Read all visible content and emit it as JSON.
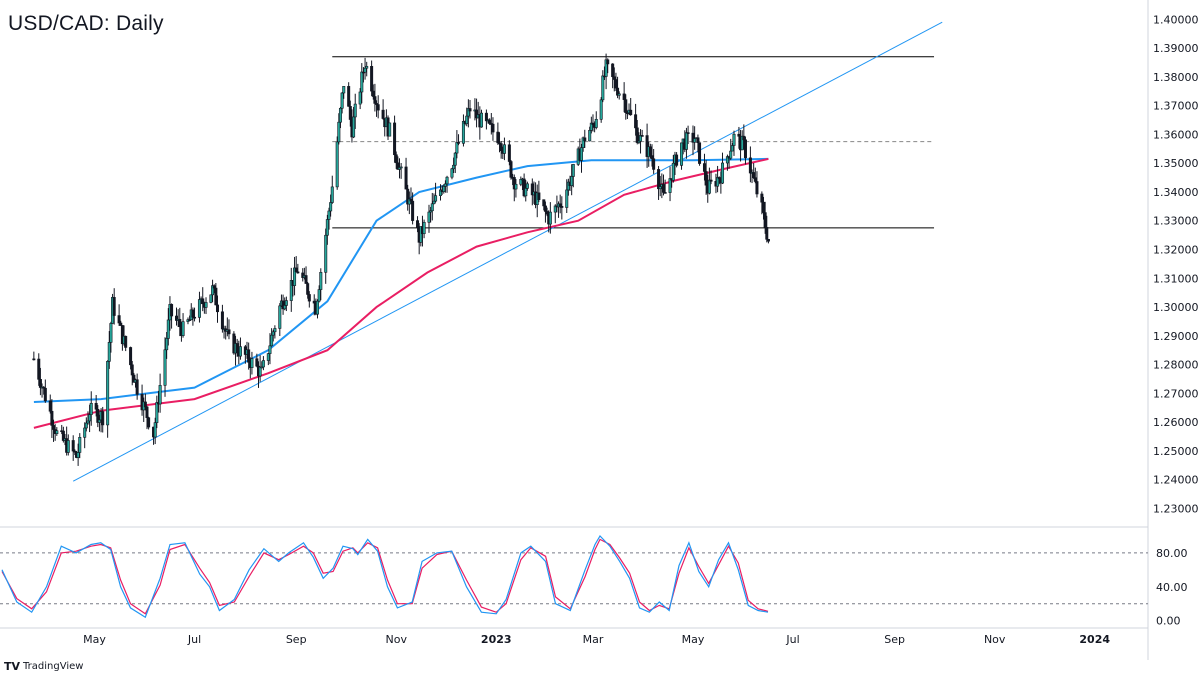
{
  "title": "USD/CAD: Daily",
  "brand": {
    "logo": "TV",
    "name": "TradingView"
  },
  "colors": {
    "bull": "#26a69a",
    "candle_stroke": "#131722",
    "ma_fast": "#2196f3",
    "ma_slow": "#e91e63",
    "trendline": "#2196f3",
    "level": "#000000",
    "stoch_k": "#2196f3",
    "stoch_d": "#e91e63"
  },
  "chart_data": [
    {
      "type": "candlestick",
      "title": "USD/CAD: Daily",
      "y_ticks": [
        "1.40000",
        "1.39000",
        "1.38000",
        "1.37000",
        "1.36000",
        "1.35000",
        "1.34000",
        "1.33000",
        "1.32000",
        "1.31000",
        "1.30000",
        "1.29000",
        "1.28000",
        "1.27000",
        "1.26000",
        "1.25000",
        "1.24000",
        "1.23000"
      ],
      "ylim": [
        1.226,
        1.4015
      ],
      "x_ticks": [
        {
          "label": "May",
          "bold": false
        },
        {
          "label": "Jul",
          "bold": false
        },
        {
          "label": "Sep",
          "bold": false
        },
        {
          "label": "Nov",
          "bold": false
        },
        {
          "label": "2023",
          "bold": true
        },
        {
          "label": "Mar",
          "bold": false
        },
        {
          "label": "May",
          "bold": false
        },
        {
          "label": "Jul",
          "bold": false
        },
        {
          "label": "Sep",
          "bold": false
        },
        {
          "label": "Nov",
          "bold": false
        },
        {
          "label": "2024",
          "bold": true
        }
      ],
      "price_path": [
        [
          "2022-03-25",
          1.282
        ],
        [
          "2022-04-08",
          1.256
        ],
        [
          "2022-04-20",
          1.248
        ],
        [
          "2022-04-28",
          1.264
        ],
        [
          "2022-05-06",
          1.262
        ],
        [
          "2022-05-12",
          1.301
        ],
        [
          "2022-05-20",
          1.286
        ],
        [
          "2022-05-27",
          1.272
        ],
        [
          "2022-06-06",
          1.256
        ],
        [
          "2022-06-16",
          1.298
        ],
        [
          "2022-06-24",
          1.292
        ],
        [
          "2022-07-01",
          1.298
        ],
        [
          "2022-07-12",
          1.306
        ],
        [
          "2022-07-22",
          1.288
        ],
        [
          "2022-08-01",
          1.283
        ],
        [
          "2022-08-11",
          1.277
        ],
        [
          "2022-08-22",
          1.3
        ],
        [
          "2022-09-02",
          1.313
        ],
        [
          "2022-09-13",
          1.3
        ],
        [
          "2022-09-23",
          1.342
        ],
        [
          "2022-09-30",
          1.378
        ],
        [
          "2022-10-05",
          1.362
        ],
        [
          "2022-10-13",
          1.385
        ],
        [
          "2022-10-21",
          1.37
        ],
        [
          "2022-10-28",
          1.361
        ],
        [
          "2022-11-04",
          1.346
        ],
        [
          "2022-11-15",
          1.324
        ],
        [
          "2022-11-25",
          1.337
        ],
        [
          "2022-12-05",
          1.35
        ],
        [
          "2022-12-16",
          1.369
        ],
        [
          "2022-12-22",
          1.365
        ],
        [
          "2023-01-03",
          1.359
        ],
        [
          "2023-01-12",
          1.344
        ],
        [
          "2023-01-25",
          1.338
        ],
        [
          "2023-02-02",
          1.331
        ],
        [
          "2023-02-10",
          1.337
        ],
        [
          "2023-02-17",
          1.347
        ],
        [
          "2023-02-24",
          1.359
        ],
        [
          "2023-03-02",
          1.364
        ],
        [
          "2023-03-09",
          1.383
        ],
        [
          "2023-03-20",
          1.372
        ],
        [
          "2023-03-28",
          1.36
        ],
        [
          "2023-04-06",
          1.352
        ],
        [
          "2023-04-13",
          1.338
        ],
        [
          "2023-04-24",
          1.357
        ],
        [
          "2023-05-02",
          1.359
        ],
        [
          "2023-05-10",
          1.341
        ],
        [
          "2023-05-18",
          1.346
        ],
        [
          "2023-05-26",
          1.359
        ],
        [
          "2023-06-01",
          1.356
        ],
        [
          "2023-06-06",
          1.346
        ],
        [
          "2023-06-12",
          1.334
        ],
        [
          "2023-06-16",
          1.323
        ]
      ],
      "moving_averages": [
        {
          "points": [
            [
              "2022-03-25",
              1.267
            ],
            [
              "2022-05-05",
              1.268
            ],
            [
              "2022-07-01",
              1.272
            ],
            [
              "2022-08-15",
              1.285
            ],
            [
              "2022-09-20",
              1.302
            ],
            [
              "2022-10-20",
              1.33
            ],
            [
              "2022-11-15",
              1.34
            ],
            [
              "2022-12-20",
              1.345
            ],
            [
              "2023-01-20",
              1.349
            ],
            [
              "2023-02-28",
              1.351
            ],
            [
              "2023-04-01",
              1.351
            ],
            [
              "2023-05-01",
              1.351
            ],
            [
              "2023-06-16",
              1.3515
            ]
          ]
        },
        {
          "points": [
            [
              "2022-03-25",
              1.258
            ],
            [
              "2022-05-05",
              1.264
            ],
            [
              "2022-07-01",
              1.268
            ],
            [
              "2022-08-15",
              1.277
            ],
            [
              "2022-09-20",
              1.285
            ],
            [
              "2022-10-20",
              1.3
            ],
            [
              "2022-11-20",
              1.312
            ],
            [
              "2022-12-20",
              1.321
            ],
            [
              "2023-01-20",
              1.326
            ],
            [
              "2023-02-20",
              1.33
            ],
            [
              "2023-03-20",
              1.339
            ],
            [
              "2023-04-20",
              1.344
            ],
            [
              "2023-05-20",
              1.348
            ],
            [
              "2023-06-16",
              1.3515
            ]
          ]
        }
      ],
      "trendline": {
        "from": [
          "2022-04-18",
          1.2395
        ],
        "to": [
          "2023-09-30",
          1.399
        ]
      },
      "levels": [
        {
          "value": 1.387,
          "style": "solid",
          "from": "2022-09-23",
          "to": "2023-09-25"
        },
        {
          "value": 1.3575,
          "style": "dashed",
          "from": "2022-09-23",
          "to": "2023-09-25"
        },
        {
          "value": 1.3275,
          "style": "solid",
          "from": "2022-09-23",
          "to": "2023-09-25"
        }
      ]
    },
    {
      "type": "line",
      "y_ticks": [
        "80.00",
        "40.00",
        "0.00"
      ],
      "ylim": [
        -4,
        100
      ],
      "levels": [
        80,
        20
      ],
      "series_k": [
        [
          0,
          60
        ],
        [
          3,
          22
        ],
        [
          6,
          10
        ],
        [
          9,
          40
        ],
        [
          12,
          88
        ],
        [
          15,
          80
        ],
        [
          18,
          90
        ],
        [
          20,
          92
        ],
        [
          22,
          84
        ],
        [
          24,
          40
        ],
        [
          26,
          15
        ],
        [
          29,
          4
        ],
        [
          32,
          50
        ],
        [
          34,
          90
        ],
        [
          37,
          92
        ],
        [
          40,
          55
        ],
        [
          42,
          40
        ],
        [
          44,
          12
        ],
        [
          47,
          25
        ],
        [
          50,
          60
        ],
        [
          53,
          85
        ],
        [
          56,
          70
        ],
        [
          58,
          80
        ],
        [
          61,
          92
        ],
        [
          63,
          75
        ],
        [
          65,
          50
        ],
        [
          67,
          62
        ],
        [
          69,
          88
        ],
        [
          71,
          85
        ],
        [
          72,
          78
        ],
        [
          74,
          96
        ],
        [
          76,
          82
        ],
        [
          78,
          40
        ],
        [
          80,
          15
        ],
        [
          83,
          22
        ],
        [
          85,
          70
        ],
        [
          88,
          80
        ],
        [
          91,
          82
        ],
        [
          94,
          40
        ],
        [
          97,
          10
        ],
        [
          100,
          8
        ],
        [
          102,
          25
        ],
        [
          105,
          80
        ],
        [
          107,
          88
        ],
        [
          110,
          70
        ],
        [
          112,
          20
        ],
        [
          115,
          12
        ],
        [
          118,
          60
        ],
        [
          120,
          90
        ],
        [
          121,
          100
        ],
        [
          123,
          88
        ],
        [
          125,
          70
        ],
        [
          127,
          50
        ],
        [
          129,
          15
        ],
        [
          131,
          10
        ],
        [
          133,
          22
        ],
        [
          135,
          12
        ],
        [
          137,
          65
        ],
        [
          139,
          92
        ],
        [
          141,
          58
        ],
        [
          143,
          40
        ],
        [
          145,
          72
        ],
        [
          147,
          92
        ],
        [
          149,
          60
        ],
        [
          151,
          18
        ],
        [
          153,
          12
        ],
        [
          155,
          10
        ]
      ],
      "series_d": [
        [
          0,
          58
        ],
        [
          3,
          26
        ],
        [
          6,
          14
        ],
        [
          9,
          34
        ],
        [
          12,
          80
        ],
        [
          15,
          82
        ],
        [
          18,
          88
        ],
        [
          20,
          90
        ],
        [
          22,
          86
        ],
        [
          24,
          48
        ],
        [
          26,
          20
        ],
        [
          29,
          8
        ],
        [
          32,
          42
        ],
        [
          34,
          84
        ],
        [
          37,
          90
        ],
        [
          40,
          62
        ],
        [
          42,
          45
        ],
        [
          44,
          18
        ],
        [
          47,
          22
        ],
        [
          50,
          52
        ],
        [
          53,
          80
        ],
        [
          56,
          72
        ],
        [
          58,
          78
        ],
        [
          61,
          88
        ],
        [
          63,
          80
        ],
        [
          65,
          56
        ],
        [
          67,
          58
        ],
        [
          69,
          82
        ],
        [
          71,
          86
        ],
        [
          72,
          80
        ],
        [
          74,
          92
        ],
        [
          76,
          86
        ],
        [
          78,
          48
        ],
        [
          80,
          20
        ],
        [
          83,
          20
        ],
        [
          85,
          62
        ],
        [
          88,
          78
        ],
        [
          91,
          82
        ],
        [
          94,
          48
        ],
        [
          97,
          16
        ],
        [
          100,
          10
        ],
        [
          102,
          20
        ],
        [
          105,
          72
        ],
        [
          107,
          86
        ],
        [
          110,
          76
        ],
        [
          112,
          28
        ],
        [
          115,
          14
        ],
        [
          118,
          52
        ],
        [
          120,
          84
        ],
        [
          121,
          96
        ],
        [
          123,
          90
        ],
        [
          125,
          74
        ],
        [
          127,
          56
        ],
        [
          129,
          22
        ],
        [
          131,
          12
        ],
        [
          133,
          18
        ],
        [
          135,
          14
        ],
        [
          137,
          56
        ],
        [
          139,
          86
        ],
        [
          141,
          64
        ],
        [
          143,
          44
        ],
        [
          145,
          66
        ],
        [
          147,
          88
        ],
        [
          149,
          68
        ],
        [
          151,
          24
        ],
        [
          153,
          14
        ],
        [
          155,
          11
        ]
      ]
    }
  ]
}
